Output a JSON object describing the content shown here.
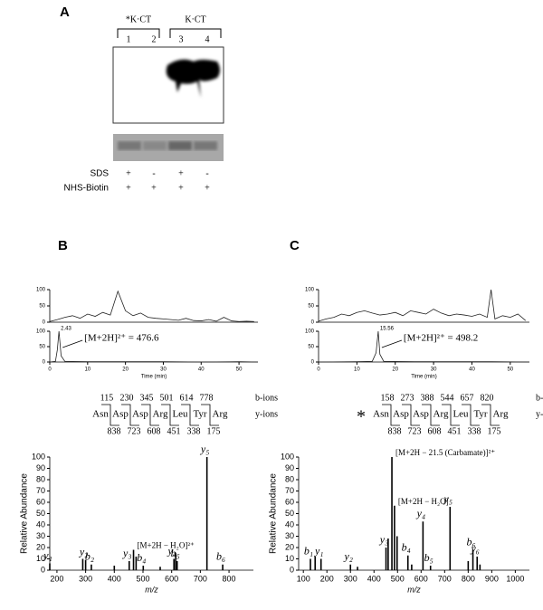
{
  "panels": [
    "A",
    "B",
    "C"
  ],
  "blot": {
    "groups": [
      "*K·CT",
      "K·CT"
    ],
    "lanes": [
      "1",
      "2",
      "3",
      "4"
    ],
    "rows": [
      {
        "label": "SDS",
        "marks": [
          "+",
          "-",
          "+",
          "-"
        ]
      },
      {
        "label": "NHS-Biotin",
        "marks": [
          "+",
          "+",
          "+",
          "+"
        ]
      }
    ]
  },
  "peptides": [
    {
      "b_ions": [
        "115",
        "230",
        "345",
        "501",
        "614",
        "778"
      ],
      "residues": [
        "Asn",
        "Asp",
        "Asp",
        "Arg",
        "Leu",
        "Tyr",
        "Arg"
      ],
      "y_ions": [
        "838",
        "723",
        "608",
        "451",
        "338",
        "175"
      ],
      "b_label": "b-ions",
      "y_label": "y-ions"
    },
    {
      "marker": "*",
      "b_ions": [
        "158",
        "273",
        "388",
        "544",
        "657",
        "820"
      ],
      "residues": [
        "Asn",
        "Asp",
        "Asp",
        "Arg",
        "Leu",
        "Tyr",
        "Arg"
      ],
      "y_ions": [
        "838",
        "723",
        "608",
        "451",
        "338",
        "175"
      ],
      "b_label": "b-ions",
      "y_label": "y-ions"
    }
  ],
  "chart_data": [
    {
      "type": "line",
      "x": [
        0,
        2,
        4,
        6,
        8,
        10,
        12,
        14,
        16,
        18,
        20,
        22,
        24,
        26,
        28,
        30,
        32,
        34,
        36,
        38,
        40,
        42,
        44,
        46,
        48,
        50,
        52,
        54
      ],
      "values": [
        2,
        8,
        15,
        20,
        12,
        25,
        18,
        30,
        22,
        95,
        35,
        20,
        28,
        15,
        12,
        10,
        8,
        6,
        12,
        5,
        4,
        8,
        3,
        15,
        4,
        2,
        3,
        2
      ],
      "xlim": [
        0,
        55
      ],
      "ylim": [
        0,
        100
      ],
      "yticks": [
        0,
        50,
        100
      ]
    },
    {
      "type": "line",
      "x": [
        0,
        1.5,
        2,
        2.43,
        3,
        4,
        10,
        20,
        30,
        40,
        50,
        55
      ],
      "values": [
        0,
        2,
        40,
        100,
        20,
        2,
        1,
        1,
        1,
        0,
        1,
        0
      ],
      "xlim": [
        0,
        55
      ],
      "ylim": [
        0,
        100
      ],
      "yticks": [
        0,
        50,
        100
      ],
      "xticks": [
        0,
        10,
        20,
        30,
        40,
        50
      ],
      "xlabel": "Time (min)",
      "peak_label": {
        "text": "2.43",
        "x": 2.43
      },
      "annotation": "[M+2H]²⁺ = 476.6"
    },
    {
      "type": "line",
      "x": [
        0,
        2,
        4,
        6,
        8,
        10,
        12,
        14,
        16,
        18,
        20,
        22,
        24,
        26,
        28,
        30,
        32,
        34,
        36,
        38,
        40,
        42,
        44,
        45,
        46,
        48,
        50,
        52,
        54
      ],
      "values": [
        3,
        10,
        15,
        25,
        20,
        30,
        35,
        28,
        22,
        25,
        30,
        20,
        35,
        30,
        25,
        40,
        28,
        20,
        25,
        22,
        18,
        25,
        15,
        100,
        10,
        20,
        15,
        25,
        5
      ],
      "xlim": [
        0,
        55
      ],
      "ylim": [
        0,
        100
      ],
      "yticks": [
        0,
        50,
        100
      ]
    },
    {
      "type": "line",
      "x": [
        0,
        10,
        14,
        15,
        15.56,
        16,
        17,
        25,
        35,
        45,
        55
      ],
      "values": [
        0,
        1,
        2,
        30,
        100,
        25,
        2,
        1,
        1,
        1,
        0
      ],
      "xlim": [
        0,
        55
      ],
      "ylim": [
        0,
        100
      ],
      "yticks": [
        0,
        50,
        100
      ],
      "xticks": [
        0,
        10,
        20,
        30,
        40,
        50
      ],
      "xlabel": "Time (min)",
      "peak_label": {
        "text": "15.56",
        "x": 15.56
      },
      "annotation": "[M+2H]²⁺ = 498.2"
    },
    {
      "type": "bar",
      "x": [
        175,
        290,
        300,
        320,
        400,
        452,
        467,
        476,
        501,
        560,
        608,
        614,
        619,
        723,
        778
      ],
      "values": [
        6,
        10,
        9,
        5,
        4,
        8,
        18,
        12,
        4,
        3,
        10,
        15,
        8,
        100,
        5
      ],
      "xlim": [
        175,
        885
      ],
      "ylim": [
        0,
        100
      ],
      "xticks": [
        200,
        300,
        400,
        500,
        600,
        700,
        800
      ],
      "yticks": [
        0,
        10,
        20,
        30,
        40,
        50,
        60,
        70,
        80,
        90,
        100
      ],
      "xlabel": "m/z",
      "ylabel": "Relative Abundance",
      "annotations": [
        {
          "text": "y₁",
          "x": 175
        },
        {
          "text": "y₂",
          "x": 300
        },
        {
          "text": "b₂",
          "x": 320
        },
        {
          "text": "y₃",
          "x": 452
        },
        {
          "text": "[M+2H − H₂O]²⁺",
          "x": 467
        },
        {
          "text": "b₄",
          "x": 501
        },
        {
          "text": "y₄",
          "x": 608
        },
        {
          "text": "b₅",
          "x": 619
        },
        {
          "text": "y₅",
          "x": 723
        },
        {
          "text": "b₆",
          "x": 778
        }
      ]
    },
    {
      "type": "bar",
      "x": [
        130,
        150,
        175,
        300,
        330,
        451,
        460,
        476,
        487,
        498,
        544,
        560,
        608,
        640,
        723,
        800,
        820,
        838,
        850
      ],
      "values": [
        10,
        12,
        10,
        5,
        3,
        20,
        28,
        100,
        57,
        30,
        13,
        5,
        43,
        4,
        56,
        8,
        18,
        12,
        5
      ],
      "xlim": [
        80,
        1060
      ],
      "ylim": [
        0,
        100
      ],
      "xticks": [
        100,
        200,
        300,
        400,
        500,
        600,
        700,
        800,
        900,
        1000
      ],
      "yticks": [
        0,
        10,
        20,
        30,
        40,
        50,
        60,
        70,
        80,
        90,
        100
      ],
      "xlabel": "m/z",
      "ylabel": "Relative Abundance",
      "annotations": [
        {
          "text": "b₁",
          "x": 130
        },
        {
          "text": "y₁",
          "x": 175
        },
        {
          "text": "y₂",
          "x": 300
        },
        {
          "text": "y₃",
          "x": 451
        },
        {
          "text": "[M+2H − 21.5 (Carbamate)]²⁺",
          "x": 476
        },
        {
          "text": "[M+2H − H₂O]",
          "x": 487
        },
        {
          "text": "b₄",
          "x": 544
        },
        {
          "text": "y₄",
          "x": 608
        },
        {
          "text": "b₅",
          "x": 640
        },
        {
          "text": "y₅",
          "x": 723
        },
        {
          "text": "b₆",
          "x": 820
        },
        {
          "text": "y₆",
          "x": 838
        }
      ]
    }
  ]
}
